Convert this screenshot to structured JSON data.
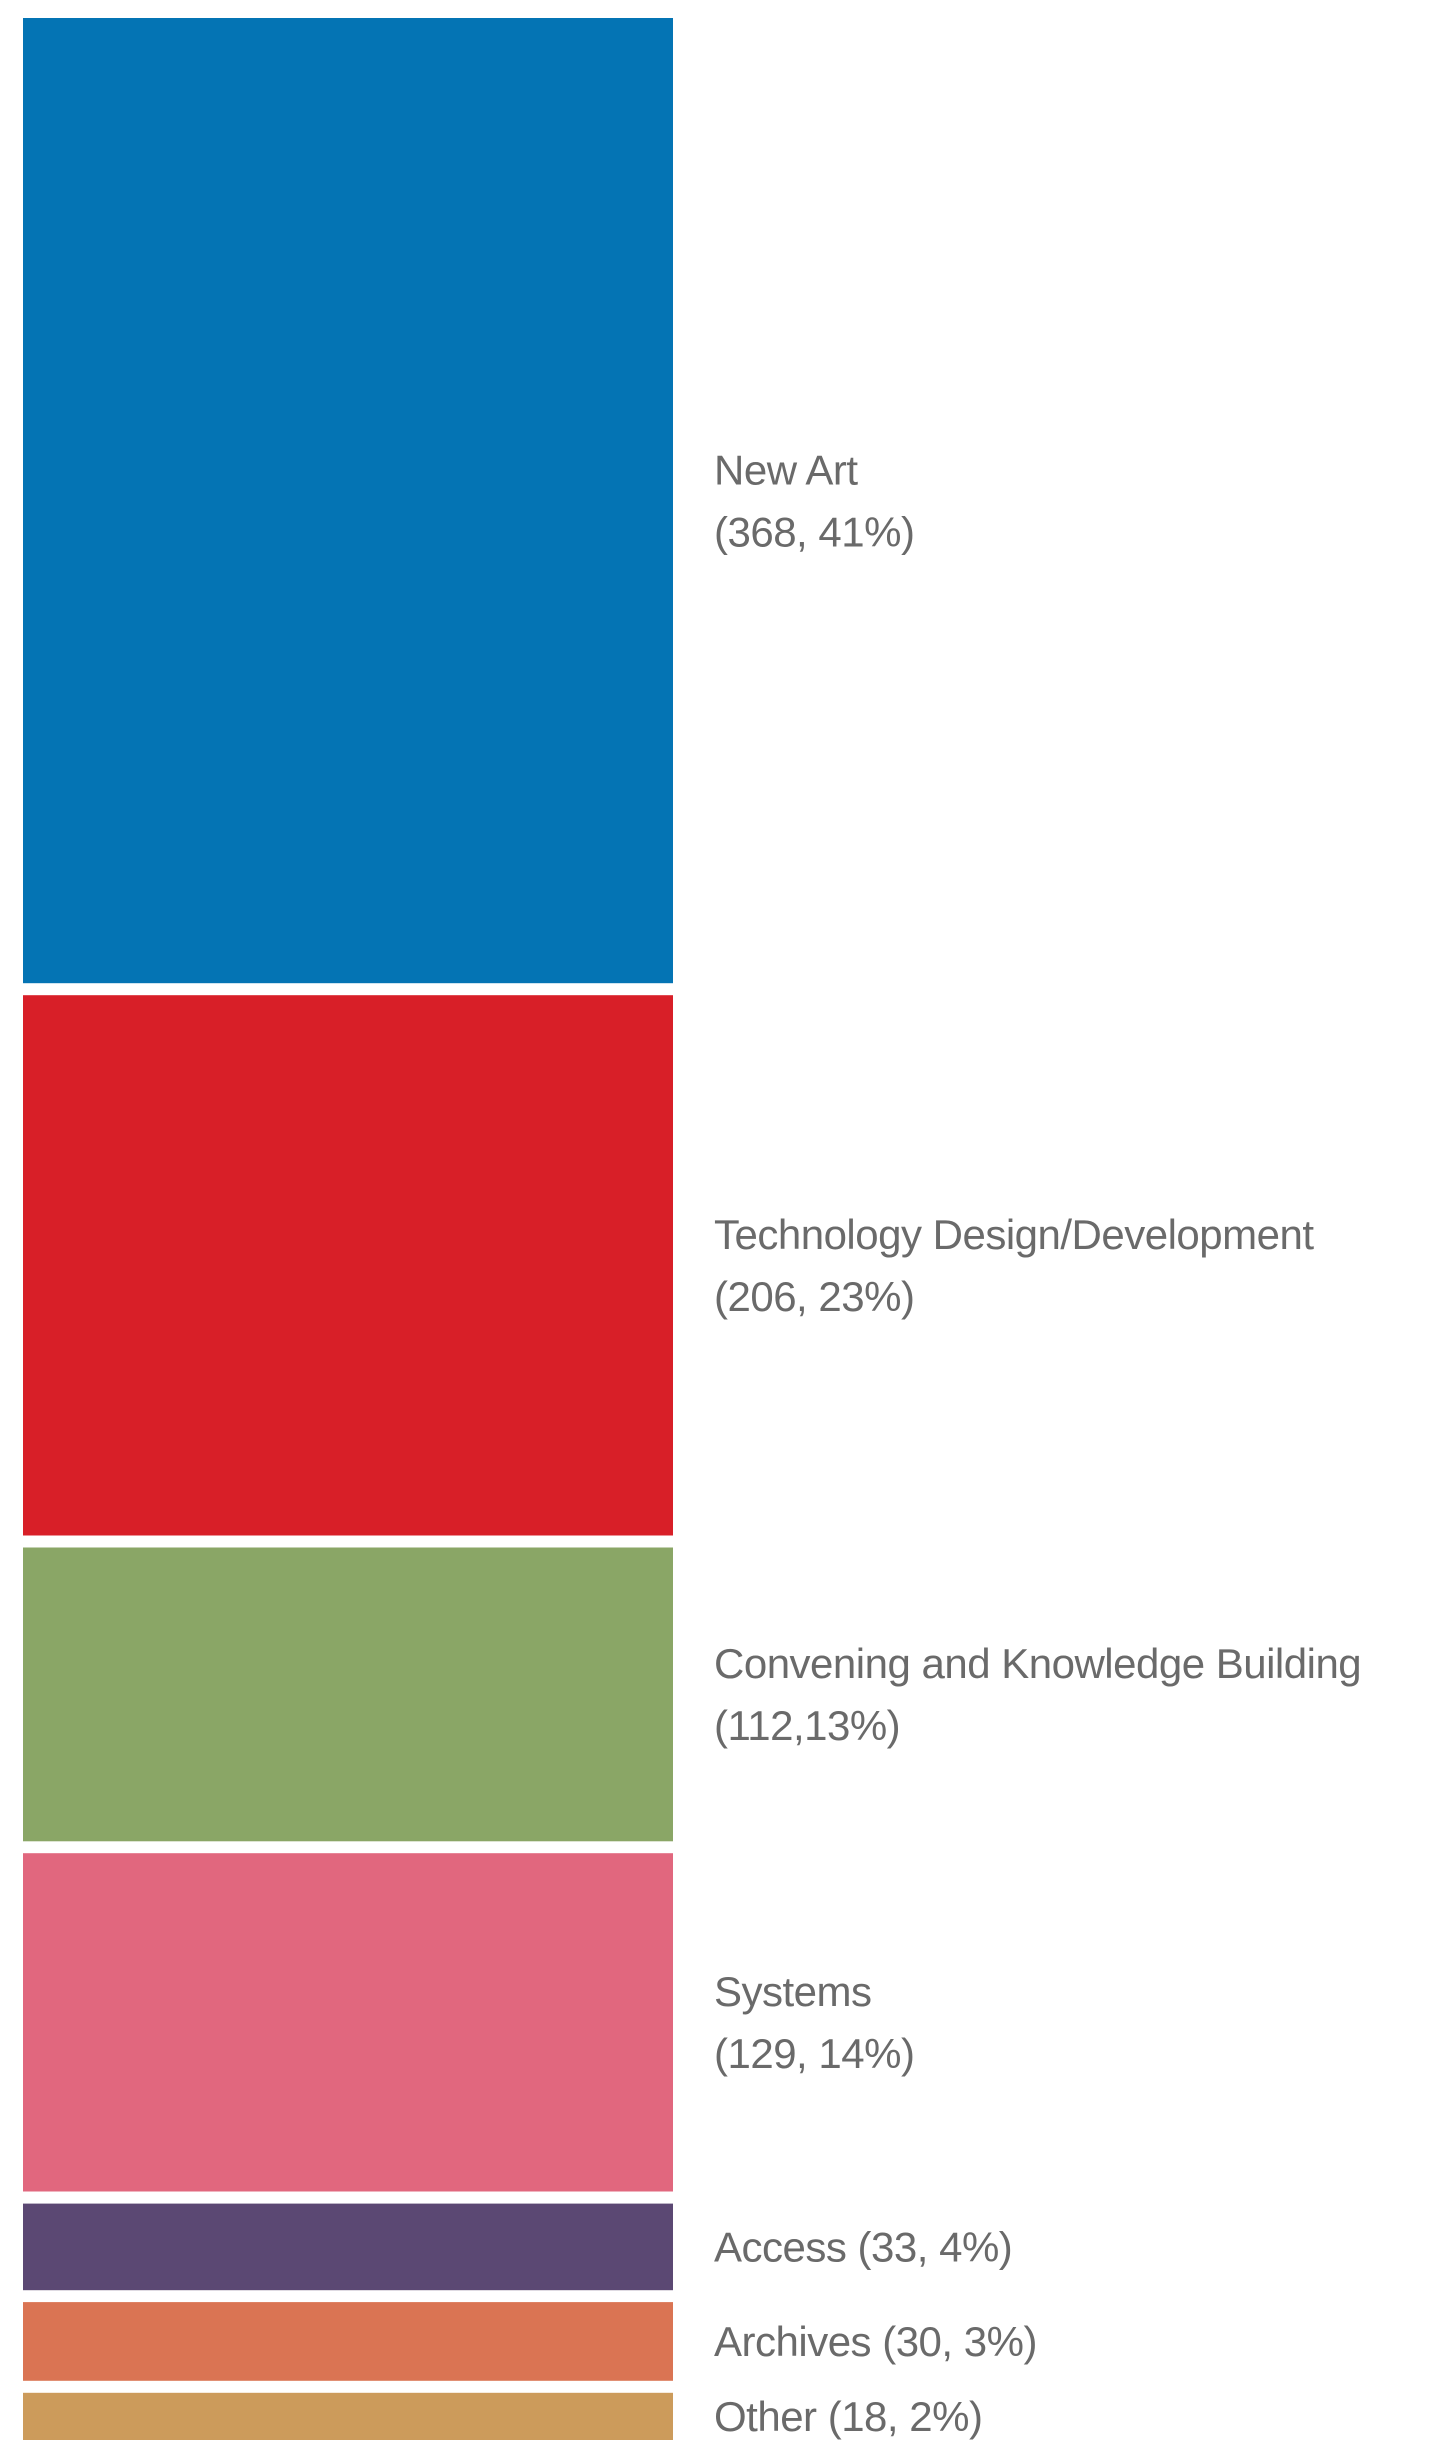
{
  "chart_data": {
    "type": "bar",
    "subtype": "stacked-single-column",
    "title": "",
    "xlabel": "",
    "ylabel": "",
    "grid": false,
    "legend": "none",
    "segments": [
      {
        "category": "New Art",
        "value": 368,
        "percent": 41,
        "label_lines": [
          "New Art",
          "(368, 41%)"
        ],
        "color": "#0474b4"
      },
      {
        "category": "Technology Design/Development",
        "value": 206,
        "percent": 23,
        "label_lines": [
          "Technology Design/Development",
          "(206, 23%)"
        ],
        "color": "#d81f28"
      },
      {
        "category": "Convening and Knowledge Building",
        "value": 112,
        "percent": 13,
        "label_lines": [
          "Convening and Knowledge Building",
          "(112,13%)"
        ],
        "color": "#8aa666"
      },
      {
        "category": "Systems",
        "value": 129,
        "percent": 14,
        "label_lines": [
          "Systems",
          "(129, 14%)"
        ],
        "color": "#e1677e"
      },
      {
        "category": "Access",
        "value": 33,
        "percent": 4,
        "label_lines": [
          "Access (33, 4%)"
        ],
        "color": "#5b4873"
      },
      {
        "category": "Archives",
        "value": 30,
        "percent": 3,
        "label_lines": [
          "Archives (30, 3%)"
        ],
        "color": "#da7453"
      },
      {
        "category": "Other",
        "value": 18,
        "percent": 2,
        "label_lines": [
          "Other (18, 2%)"
        ],
        "color": "#cc9b5b"
      }
    ]
  }
}
